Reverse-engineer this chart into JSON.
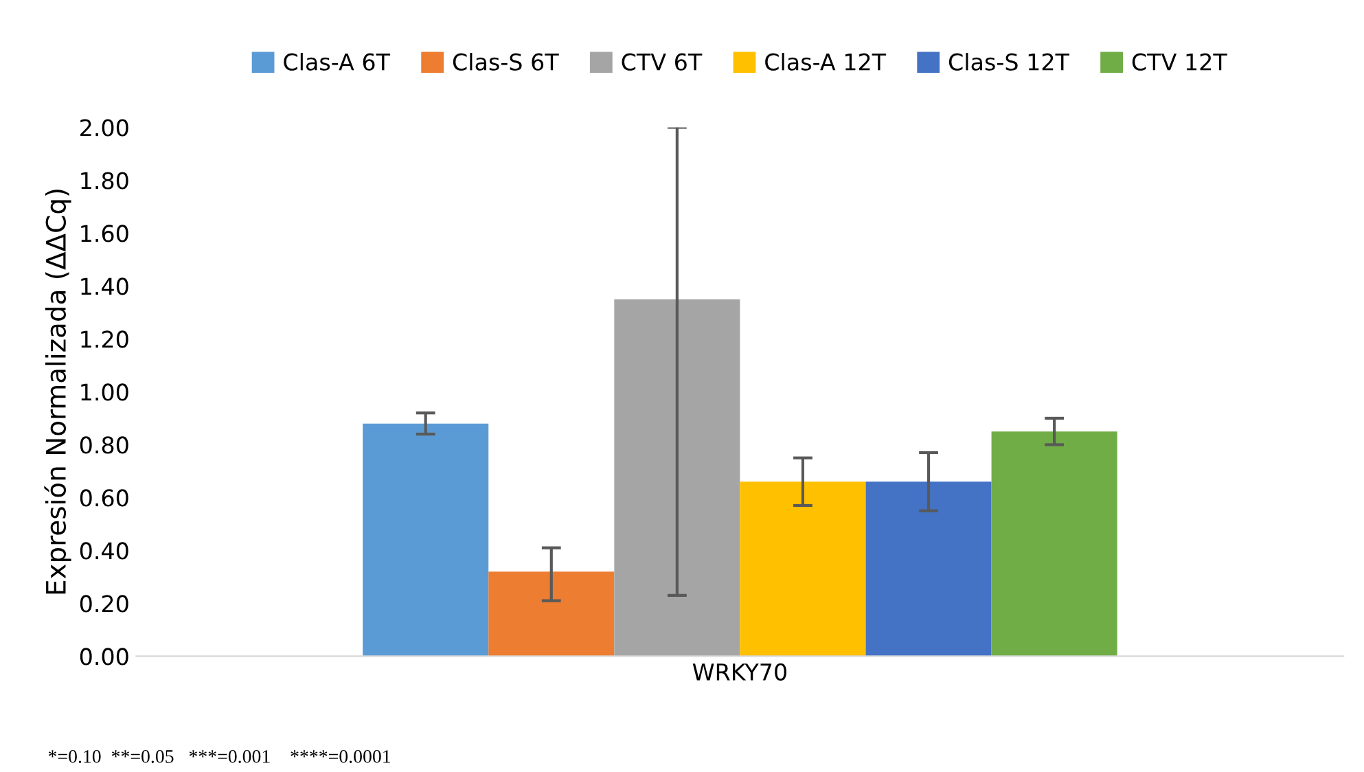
{
  "chart_data": {
    "type": "bar",
    "ylabel": "Expresión Normalizada (ΔΔCq)",
    "categories": [
      "WRKY70"
    ],
    "series": [
      {
        "name": "Clas-A 6T",
        "color": "#5b9bd5",
        "values": [
          0.88
        ],
        "errors": [
          [
            0.84,
            0.92
          ]
        ]
      },
      {
        "name": "Clas-S 6T",
        "color": "#ed7d31",
        "values": [
          0.32
        ],
        "errors": [
          [
            0.21,
            0.41
          ]
        ]
      },
      {
        "name": "CTV 6T",
        "color": "#a5a5a5",
        "values": [
          1.35
        ],
        "errors": [
          [
            0.23,
            2.0
          ]
        ]
      },
      {
        "name": "Clas-A 12T",
        "color": "#ffc000",
        "values": [
          0.66
        ],
        "errors": [
          [
            0.57,
            0.75
          ]
        ]
      },
      {
        "name": "Clas-S 12T",
        "color": "#4472c4",
        "values": [
          0.66
        ],
        "errors": [
          [
            0.55,
            0.77
          ]
        ]
      },
      {
        "name": "CTV 12T",
        "color": "#70ad47",
        "values": [
          0.85
        ],
        "errors": [
          [
            0.8,
            0.9
          ]
        ]
      }
    ],
    "ylim": [
      0,
      2.0
    ],
    "yticks": [
      {
        "value": 0,
        "label": "0.00"
      },
      {
        "value": 0.2,
        "label": "0.20"
      },
      {
        "value": 0.4,
        "label": "0.40"
      },
      {
        "value": 0.6,
        "label": "0.60"
      },
      {
        "value": 0.8,
        "label": "0.80"
      },
      {
        "value": 1.0,
        "label": "1.00"
      },
      {
        "value": 1.2,
        "label": "1.20"
      },
      {
        "value": 1.4,
        "label": "1.40"
      },
      {
        "value": 1.6,
        "label": "1.60"
      },
      {
        "value": 1.8,
        "label": "1.80"
      },
      {
        "value": 2.0,
        "label": "2.00"
      }
    ],
    "grid": false,
    "legend": "top",
    "annotations": [
      "*=0.10  **=0.05   ***=0.001    ****=0.0001"
    ]
  }
}
